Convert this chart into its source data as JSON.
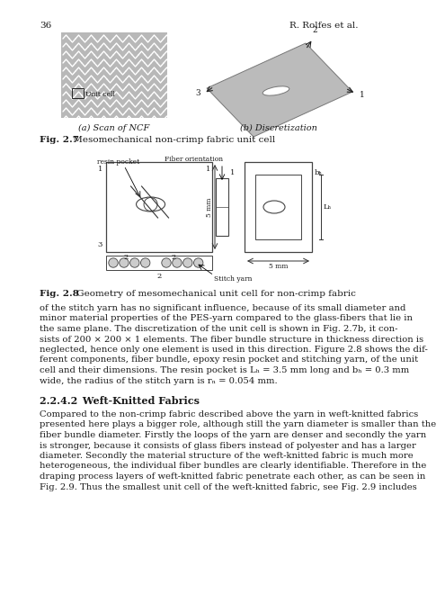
{
  "page_num": "36",
  "author": "R. Rolfes et al.",
  "fig27a_label": "(a) Scan of NCF",
  "fig27b_label": "(b) Discretization",
  "fig27_bold": "Fig. 2.7",
  "fig27_rest": " Mesomechanical non-crimp fabric unit cell",
  "fig28_bold": "Fig. 2.8",
  "fig28_rest": " Geometry of mesomechanical unit cell for non-crimp fabric",
  "section_title": "2.2.4.2 Weft-Knitted Fabrics",
  "para1_lines": [
    "of the stitch yarn has no significant influence, because of its small diameter and",
    "minor material properties of the PES-yarn compared to the glass-fibers that lie in",
    "the same plane. The discretization of the unit cell is shown in Fig. 2.7b, it con-",
    "sists of 200 × 200 × 1 elements. The fiber bundle structure in thickness direction is",
    "neglected, hence only one element is used in this direction. Figure 2.8 shows the dif-",
    "ferent components, fiber bundle, epoxy resin pocket and stitching yarn, of the unit",
    "cell and their dimensions. The resin pocket is Lₕ = 3.5 mm long and bₕ = 0.3 mm",
    "wide, the radius of the stitch yarn is rₙ = 0.054 mm."
  ],
  "para2_lines": [
    "Compared to the non-crimp fabric described above the yarn in weft-knitted fabrics",
    "presented here plays a bigger role, although still the yarn diameter is smaller than the",
    "fiber bundle diameter. Firstly the loops of the yarn are denser and secondly the yarn",
    "is stronger, because it consists of glass fibers instead of polyester and has a larger",
    "diameter. Secondly the material structure of the weft-knitted fabric is much more",
    "heterogeneous, the individual fiber bundles are clearly identifiable. Therefore in the",
    "draping process layers of weft-knitted fabric penetrate each other, as can be seen in",
    "Fig. 2.9. Thus the smallest unit cell of the weft-knitted fabric, see Fig. 2.9 includes"
  ],
  "bg_color": "#ffffff",
  "text_color": "#1a1a1a",
  "gray_ncf": "#b8b8b8",
  "gray_plate": "#bbbbbb",
  "line_col": "#444444"
}
